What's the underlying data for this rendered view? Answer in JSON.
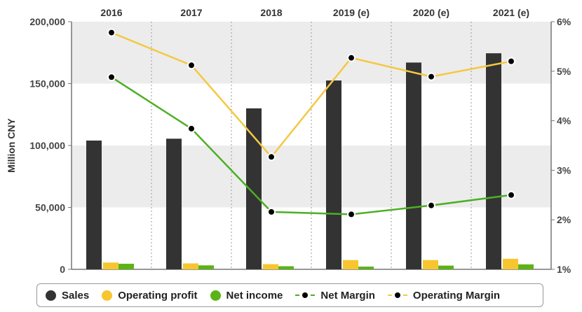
{
  "chart_data": {
    "type": "bar",
    "categories": [
      "2016",
      "2017",
      "2018",
      "2019 (e)",
      "2020 (e)",
      "2021 (e)"
    ],
    "ylabel": "Million CNY",
    "ylim": [
      0,
      200000
    ],
    "y_ticks": [
      0,
      50000,
      100000,
      150000,
      200000
    ],
    "y_tick_labels": [
      "0",
      "50,000",
      "100,000",
      "150,000",
      "200,000"
    ],
    "y2lim": [
      1,
      6
    ],
    "y2_ticks": [
      1,
      2,
      3,
      4,
      5,
      6
    ],
    "y2_tick_labels": [
      "1%",
      "2%",
      "3%",
      "4%",
      "5%",
      "6%"
    ],
    "series": [
      {
        "name": "Sales",
        "type": "bar",
        "axis": "left",
        "color": "#333333",
        "values": [
          104000,
          105500,
          130000,
          152500,
          167000,
          174500
        ]
      },
      {
        "name": "Operating profit",
        "type": "bar",
        "axis": "left",
        "color": "#f7c62f",
        "values": [
          5500,
          4800,
          4200,
          7500,
          7500,
          8500
        ]
      },
      {
        "name": "Net income",
        "type": "bar",
        "axis": "left",
        "color": "#5cb316",
        "values": [
          4500,
          3200,
          2500,
          2200,
          3000,
          4000
        ]
      },
      {
        "name": "Net Margin",
        "type": "line",
        "axis": "right",
        "color": "#4caf25",
        "values": [
          4.88,
          3.84,
          2.16,
          2.11,
          2.29,
          2.5
        ]
      },
      {
        "name": "Operating Margin",
        "type": "line",
        "axis": "right",
        "color": "#f5c842",
        "values": [
          5.78,
          5.12,
          3.27,
          5.27,
          4.89,
          5.2
        ]
      }
    ],
    "legend_position": "bottom",
    "grid": "alternating horizontal bands, dotted vertical separators",
    "colors": {
      "band": "#ececec",
      "axis": "#777777"
    }
  }
}
